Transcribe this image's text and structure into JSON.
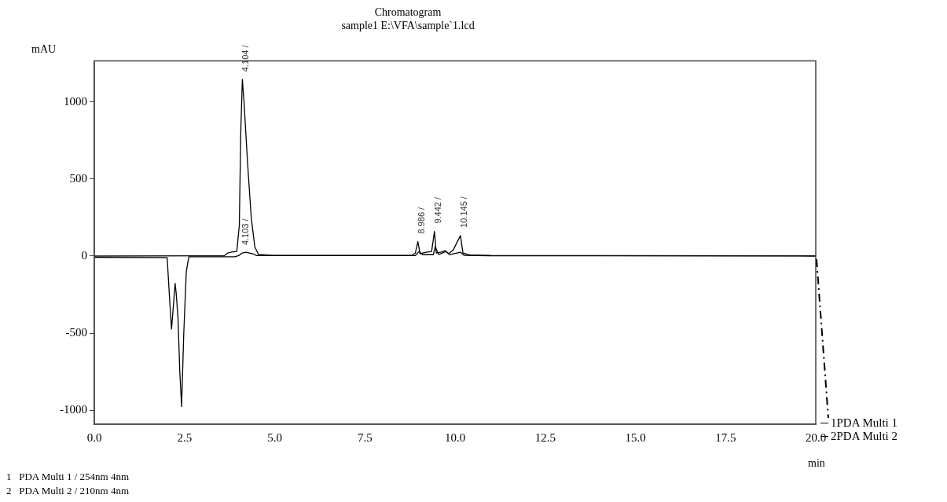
{
  "chart_data": {
    "type": "line",
    "title": "Chromatogram",
    "subtitle": "sample1 E:\\VFA\\sample`1.lcd",
    "xlabel": "min",
    "ylabel": "mAU",
    "xlim": [
      0,
      20
    ],
    "xticks": [
      {
        "value": 0,
        "label": "0.0"
      },
      {
        "value": 2.5,
        "label": "2.5"
      },
      {
        "value": 5,
        "label": "5.0"
      },
      {
        "value": 7.5,
        "label": "7.5"
      },
      {
        "value": 10,
        "label": "10.0"
      },
      {
        "value": 12.5,
        "label": "12.5"
      },
      {
        "value": 15,
        "label": "15.0"
      },
      {
        "value": 17.5,
        "label": "17.5"
      },
      {
        "value": 20,
        "label": "20.0"
      }
    ],
    "ylim": [
      -1090,
      1265
    ],
    "yticks": [
      -1000,
      -500,
      0,
      500,
      1000
    ],
    "grid": false,
    "legend": "bottom right",
    "marker": "none",
    "series": [
      {
        "name": "1PDA Multi 1",
        "color": "#000000",
        "x": [
          0,
          3.6,
          3.7,
          3.85,
          3.95,
          4.02,
          4.06,
          4.104,
          4.15,
          4.25,
          4.35,
          4.45,
          4.55,
          5,
          8.8,
          8.9,
          8.97,
          9.03,
          9.1,
          9.2,
          9.35,
          9.43,
          9.48,
          9.6,
          9.72,
          9.82,
          9.95,
          10.1,
          10.15,
          10.22,
          10.4,
          11,
          20
        ],
        "values": [
          0,
          2,
          20,
          28,
          30,
          200,
          800,
          1145,
          1000,
          600,
          250,
          60,
          10,
          4,
          4,
          20,
          94,
          15,
          20,
          25,
          30,
          160,
          20,
          25,
          35,
          15,
          40,
          110,
          133,
          20,
          8,
          4,
          2
        ]
      },
      {
        "name": "2PDA Multi 2",
        "color": "#000000",
        "x": [
          0,
          2.02,
          2.08,
          2.14,
          2.2,
          2.24,
          2.27,
          2.32,
          2.37,
          2.42,
          2.48,
          2.55,
          2.62,
          3.9,
          4.0,
          4.103,
          4.2,
          4.4,
          4.5,
          8.9,
          9.0,
          9.1,
          9.4,
          9.45,
          9.55,
          9.75,
          9.85,
          10.15,
          10.25,
          11,
          20
        ],
        "values": [
          -8,
          -10,
          -250,
          -473,
          -300,
          -177,
          -241,
          -400,
          -750,
          -975,
          -500,
          -100,
          -5,
          -5,
          3,
          20,
          25,
          15,
          3,
          3,
          30,
          10,
          10,
          60,
          10,
          30,
          10,
          25,
          5,
          2,
          0
        ]
      }
    ],
    "annotations": [
      {
        "text": "4.104 /",
        "x": 4.104,
        "y": 1145
      },
      {
        "text": "4.103 /",
        "x": 4.103,
        "y": 20
      },
      {
        "text": "8.986 /",
        "x": 8.986,
        "y": 94
      },
      {
        "text": "9.442 /",
        "x": 9.442,
        "y": 160
      },
      {
        "text": "10.145 /",
        "x": 10.145,
        "y": 133
      },
      "1   PDA Multi 1 / 254nm 4nm",
      "2   PDA Multi 2 / 210nm 4nm"
    ]
  }
}
